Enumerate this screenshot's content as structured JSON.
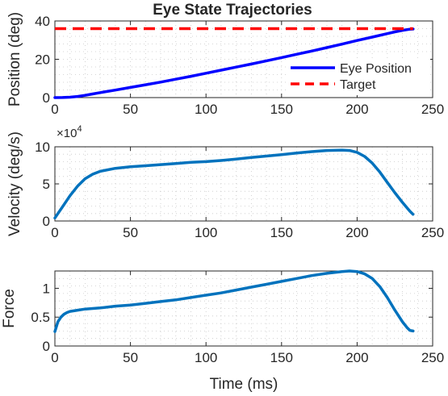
{
  "chart_data": [
    {
      "type": "line",
      "title": "Eye State Trajectories",
      "xlabel": "",
      "ylabel": "Position (deg)",
      "xlim": [
        0,
        250
      ],
      "ylim": [
        0,
        40
      ],
      "xticks": [
        0,
        50,
        100,
        150,
        200,
        250
      ],
      "yticks": [
        0,
        20,
        40
      ],
      "grid": true,
      "legend_position": "bottom-right",
      "series": [
        {
          "name": "Eye Position",
          "color": "#0000ff",
          "style": "solid",
          "x": [
            0,
            5,
            10,
            15,
            20,
            25,
            30,
            40,
            50,
            60,
            70,
            80,
            90,
            100,
            110,
            120,
            130,
            140,
            150,
            160,
            170,
            180,
            190,
            200,
            210,
            220,
            225,
            230,
            235,
            237
          ],
          "y": [
            0,
            0.05,
            0.2,
            0.6,
            1.2,
            1.9,
            2.6,
            3.9,
            5.3,
            6.7,
            8.1,
            9.6,
            11.1,
            12.7,
            14.3,
            15.9,
            17.5,
            19.2,
            20.9,
            22.6,
            24.3,
            26.1,
            27.9,
            29.8,
            31.6,
            33.4,
            34.3,
            35.1,
            35.7,
            35.8
          ]
        },
        {
          "name": "Target",
          "color": "#ff0000",
          "style": "dashed",
          "x": [
            0,
            237
          ],
          "y": [
            36,
            36
          ]
        }
      ]
    },
    {
      "type": "line",
      "title": "",
      "xlabel": "",
      "ylabel": "Velocity (deg/s)",
      "xlim": [
        0,
        250
      ],
      "ylim": [
        0,
        10
      ],
      "xticks": [
        0,
        50,
        100,
        150,
        200,
        250
      ],
      "yticks": [
        0,
        5,
        10
      ],
      "y_exponent_base": "×10",
      "y_exponent_power": "4",
      "grid": true,
      "series": [
        {
          "color": "#0072bd",
          "style": "solid",
          "x": [
            0,
            2,
            5,
            8,
            10,
            15,
            20,
            25,
            30,
            40,
            50,
            60,
            70,
            80,
            90,
            100,
            110,
            120,
            130,
            140,
            150,
            160,
            170,
            180,
            190,
            195,
            200,
            205,
            210,
            215,
            220,
            225,
            230,
            235,
            237
          ],
          "y": [
            0.4,
            1.0,
            1.9,
            2.8,
            3.4,
            4.7,
            5.7,
            6.3,
            6.7,
            7.1,
            7.3,
            7.45,
            7.6,
            7.75,
            7.9,
            8.0,
            8.15,
            8.35,
            8.55,
            8.75,
            8.95,
            9.15,
            9.35,
            9.5,
            9.55,
            9.5,
            9.25,
            8.7,
            7.8,
            6.6,
            5.2,
            3.8,
            2.5,
            1.3,
            0.9
          ]
        }
      ]
    },
    {
      "type": "line",
      "title": "",
      "xlabel": "Time (ms)",
      "ylabel": "Force",
      "xlim": [
        0,
        250
      ],
      "ylim": [
        0,
        1.3
      ],
      "xticks": [
        0,
        50,
        100,
        150,
        200,
        250
      ],
      "yticks": [
        0,
        0.5,
        1
      ],
      "grid": true,
      "series": [
        {
          "color": "#0072bd",
          "style": "solid",
          "x": [
            0,
            2,
            4,
            6,
            8,
            10,
            15,
            20,
            30,
            40,
            50,
            60,
            70,
            80,
            90,
            100,
            110,
            120,
            130,
            140,
            150,
            160,
            170,
            180,
            190,
            195,
            200,
            205,
            210,
            215,
            220,
            225,
            230,
            233,
            235,
            237
          ],
          "y": [
            0.25,
            0.42,
            0.5,
            0.55,
            0.58,
            0.6,
            0.62,
            0.64,
            0.66,
            0.69,
            0.71,
            0.74,
            0.77,
            0.8,
            0.84,
            0.88,
            0.92,
            0.97,
            1.02,
            1.07,
            1.12,
            1.17,
            1.22,
            1.26,
            1.29,
            1.3,
            1.29,
            1.25,
            1.17,
            1.03,
            0.84,
            0.62,
            0.42,
            0.32,
            0.27,
            0.26
          ]
        }
      ]
    }
  ]
}
